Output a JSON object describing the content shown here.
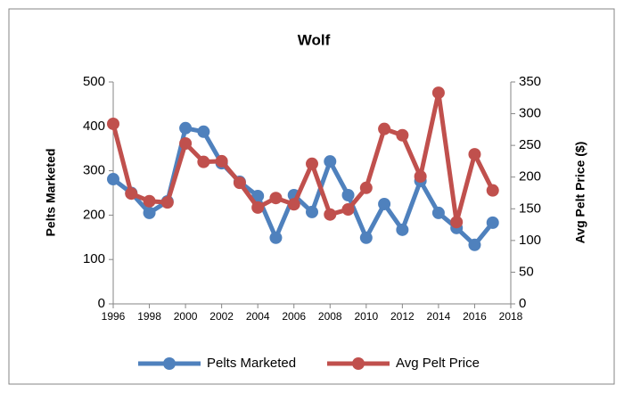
{
  "chart_data": {
    "type": "line",
    "title": "Wolf",
    "y_label": "Pelts Marketed",
    "y2_label": "Avg Pelt Price ($)",
    "x": [
      1996,
      1997,
      1998,
      1999,
      2000,
      2001,
      2002,
      2003,
      2004,
      2005,
      2006,
      2007,
      2008,
      2009,
      2010,
      2011,
      2012,
      2013,
      2014,
      2015,
      2016,
      2017
    ],
    "xlim": [
      1996,
      2018
    ],
    "xticks": [
      1996,
      1998,
      2000,
      2002,
      2004,
      2006,
      2008,
      2010,
      2012,
      2014,
      2016,
      2018
    ],
    "ylim": [
      0,
      500
    ],
    "yticks": [
      0,
      100,
      200,
      300,
      400,
      500
    ],
    "y2lim": [
      0,
      350
    ],
    "y2ticks": [
      0,
      50,
      100,
      150,
      200,
      250,
      300,
      350
    ],
    "legend": "bottom",
    "series": [
      {
        "name": "Pelts Marketed",
        "color": "#4f81bd",
        "values": [
          281,
          250,
          205,
          231,
          396,
          388,
          317,
          275,
          243,
          149,
          245,
          207,
          321,
          245,
          149,
          225,
          167,
          277,
          205,
          171,
          133,
          183
        ]
      },
      {
        "name": "Avg Pelt Price",
        "color": "#c0504d",
        "axis": "y2",
        "values": [
          284,
          174,
          162,
          160,
          253,
          224,
          225,
          191,
          152,
          167,
          157,
          221,
          141,
          149,
          183,
          276,
          266,
          201,
          333,
          129,
          236,
          179
        ]
      }
    ]
  }
}
